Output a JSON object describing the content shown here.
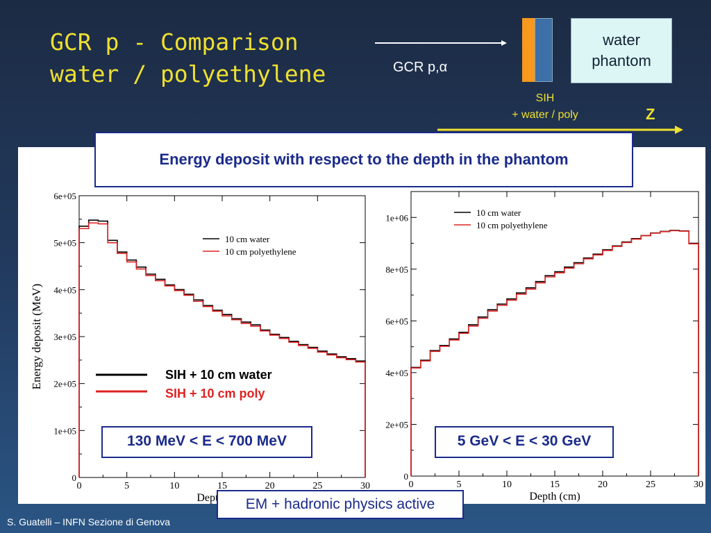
{
  "slide": {
    "title_line1": "GCR p - Comparison",
    "title_line2": "water / polyethylene",
    "beam_label": "GCR p,α",
    "water_phantom_line1": "water",
    "water_phantom_line2": "phantom",
    "sih_line1": "SIH",
    "sih_line2": "+  water / poly",
    "z_label": "Z",
    "banner_text": "Energy deposit  with respect to the depth in the phantom",
    "overlay_legend_water": "SIH + 10 cm water",
    "overlay_legend_poly": "SIH + 10 cm poly",
    "range_left": "130 MeV < E < 700 MeV",
    "range_right": "5 GeV < E < 30 GeV",
    "physics_note": "EM + hadronic physics active",
    "footer": "S. Guatelli – INFN Sezione di Genova",
    "colors": {
      "title": "#f0e030",
      "box_border": "#1a2a8a",
      "water": "#000000",
      "poly": "#dd2222"
    }
  },
  "chart_data": [
    {
      "type": "line",
      "title": "",
      "xlabel": "Depth (cm)",
      "ylabel": "Energy deposit (MeV)",
      "xlim": [
        0,
        30
      ],
      "ylim": [
        0,
        600000
      ],
      "xticks": [
        "0",
        "5",
        "10",
        "15",
        "20",
        "25",
        "30"
      ],
      "yticks": [
        "0",
        "1e+05",
        "2e+05",
        "3e+05",
        "4e+05",
        "5e+05",
        "6e+05"
      ],
      "legend": "top-right",
      "x_bins": [
        0,
        1,
        2,
        3,
        4,
        5,
        6,
        7,
        8,
        9,
        10,
        11,
        12,
        13,
        14,
        15,
        16,
        17,
        18,
        19,
        20,
        21,
        22,
        23,
        24,
        25,
        26,
        27,
        28,
        29,
        30
      ],
      "series": [
        {
          "name": "10 cm water",
          "color": "#000000",
          "values": [
            535000,
            548000,
            546000,
            505000,
            480000,
            463000,
            448000,
            433000,
            422000,
            410000,
            400000,
            390000,
            378000,
            366000,
            356000,
            347000,
            338000,
            331000,
            325000,
            314000,
            305000,
            298000,
            290000,
            283000,
            277000,
            269000,
            263000,
            257000,
            253000,
            248000
          ]
        },
        {
          "name": "10 cm polyethylene",
          "color": "#dd2222",
          "values": [
            530000,
            542000,
            540000,
            500000,
            477000,
            459000,
            444000,
            430000,
            419000,
            408000,
            398000,
            388000,
            375000,
            364000,
            354000,
            344000,
            336000,
            328000,
            322000,
            312000,
            303000,
            296000,
            288000,
            281000,
            275000,
            267000,
            261000,
            255000,
            251000,
            246000
          ]
        }
      ]
    },
    {
      "type": "line",
      "title": "",
      "xlabel": "Depth (cm)",
      "ylabel": "",
      "xlim": [
        0,
        30
      ],
      "ylim": [
        0,
        1100000
      ],
      "xticks": [
        "0",
        "5",
        "10",
        "15",
        "20",
        "25",
        "30"
      ],
      "yticks": [
        "0",
        "2e+05",
        "4e+05",
        "6e+05",
        "8e+05",
        "1e+06"
      ],
      "legend": "top-left",
      "x_bins": [
        0,
        1,
        2,
        3,
        4,
        5,
        6,
        7,
        8,
        9,
        10,
        11,
        12,
        13,
        14,
        15,
        16,
        17,
        18,
        19,
        20,
        21,
        22,
        23,
        24,
        25,
        26,
        27,
        28,
        29,
        30
      ],
      "series": [
        {
          "name": "10 cm water",
          "color": "#000000",
          "values": [
            420000,
            448000,
            485000,
            505000,
            530000,
            556000,
            585000,
            615000,
            643000,
            665000,
            685000,
            708000,
            728000,
            752000,
            775000,
            790000,
            808000,
            825000,
            843000,
            858000,
            875000,
            890000,
            905000,
            918000,
            930000,
            940000,
            946000,
            950000,
            948000,
            900000
          ]
        },
        {
          "name": "10 cm polyethylene",
          "color": "#dd2222",
          "values": [
            418000,
            445000,
            482000,
            502000,
            526000,
            552000,
            580000,
            610000,
            638000,
            660000,
            680000,
            703000,
            723000,
            747000,
            770000,
            786000,
            804000,
            821000,
            840000,
            855000,
            872000,
            888000,
            903000,
            916000,
            929000,
            939000,
            945000,
            949000,
            947000,
            898000
          ]
        }
      ]
    }
  ]
}
